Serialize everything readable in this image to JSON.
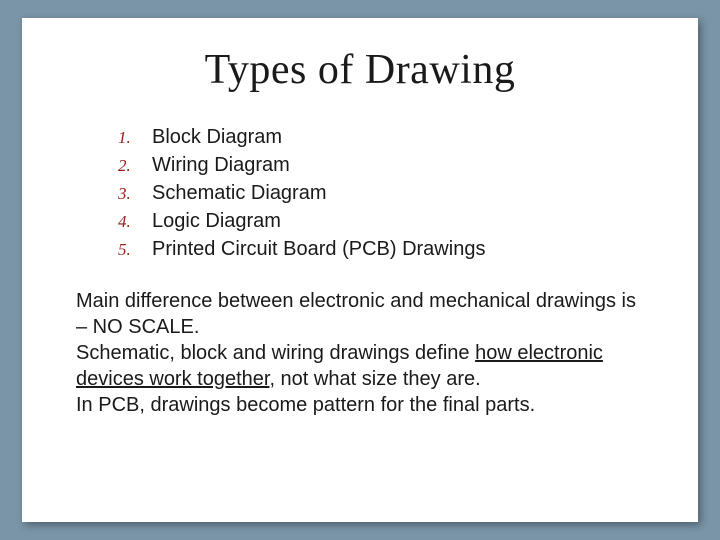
{
  "background_color": "#7a95a8",
  "slide_background": "#ffffff",
  "title": "Types of Drawing",
  "title_font": "Georgia",
  "title_fontsize": 42,
  "title_color": "#1a1a1a",
  "list_number_color": "#9b1c1c",
  "list_number_fontstyle": "italic",
  "list_number_font": "Georgia",
  "list_text_fontsize": 20,
  "list_text_color": "#1a1a1a",
  "list": [
    {
      "num": "1.",
      "text": "Block Diagram"
    },
    {
      "num": "2.",
      "text": "Wiring Diagram"
    },
    {
      "num": "3.",
      "text": "Schematic Diagram"
    },
    {
      "num": "4.",
      "text": "Logic Diagram"
    },
    {
      "num": "5.",
      "text": "Printed Circuit Board (PCB) Drawings"
    }
  ],
  "body": {
    "p1_a": "Main difference between electronic and mechanical drawings is – NO SCALE.",
    "p2_a": "Schematic, block and wiring drawings define ",
    "p2_u": "how electronic devices work together",
    "p2_b": ", not what size they are.",
    "p3_a": "In PCB, drawings become pattern for the final parts."
  },
  "body_fontsize": 20,
  "body_color": "#1a1a1a"
}
